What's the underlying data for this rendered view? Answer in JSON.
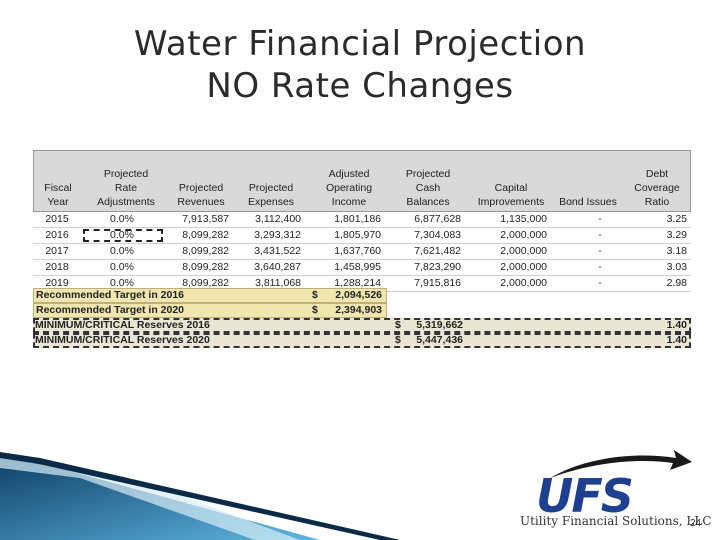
{
  "title": {
    "line1": "Water Financial Projection",
    "line2": "NO Rate Changes"
  },
  "table": {
    "headers": [
      [
        "Fiscal",
        "Year"
      ],
      [
        "Projected",
        "Rate",
        "Adjustments"
      ],
      [
        "Projected",
        "Revenues"
      ],
      [
        "Projected",
        "Expenses"
      ],
      [
        "Adjusted",
        "Operating",
        "Income"
      ],
      [
        "Projected",
        "Cash",
        "Balances"
      ],
      [
        "Capital",
        "Improvements"
      ],
      [
        "Bond Issues"
      ],
      [
        "Debt",
        "Coverage",
        "Ratio"
      ]
    ],
    "rows": [
      [
        "2015",
        "0.0%",
        "7,913,587",
        "3,112,400",
        "1,801,186",
        "6,877,628",
        "1,135,000",
        "-",
        "3.25"
      ],
      [
        "2016",
        "0.0%",
        "8,099,282",
        "3,293,312",
        "1,805,970",
        "7,304,083",
        "2,000,000",
        "-",
        "3.29"
      ],
      [
        "2017",
        "0.0%",
        "8,099,282",
        "3,431,522",
        "1,637,760",
        "7,621,482",
        "2,000,000",
        "-",
        "3.18"
      ],
      [
        "2018",
        "0.0%",
        "8,099,282",
        "3,640,287",
        "1,458,995",
        "7,823,290",
        "2,000,000",
        "-",
        "3.03"
      ],
      [
        "2019",
        "0.0%",
        "8,099,282",
        "3,811,068",
        "1,288,214",
        "7,915,816",
        "2,000,000",
        "-",
        "2.98"
      ]
    ],
    "targets": [
      {
        "label": "Recommended Target in 2016",
        "currency": "$",
        "value": "2,094,526"
      },
      {
        "label": "Recommended Target in 2020",
        "currency": "$",
        "value": "2,394,903"
      }
    ],
    "reserves": [
      {
        "label": "MINIMUM/CRITICAL Reserves 2016",
        "currency": "$",
        "value": "5,319,662",
        "ratio": "1.40"
      },
      {
        "label": "MINIMUM/CRITICAL Reserves 2020",
        "currency": "$",
        "value": "5,447,436",
        "ratio": "1.40"
      }
    ]
  },
  "logo": {
    "text": "UFS",
    "company": "Utility Financial Solutions, LLC"
  },
  "page_number": "24",
  "colors": {
    "header_bg": "#d9d9d9",
    "target_bg": "#f2e6b0",
    "reserve_bg": "#e9e6d6",
    "logo_blue": "#1f3f8f"
  }
}
